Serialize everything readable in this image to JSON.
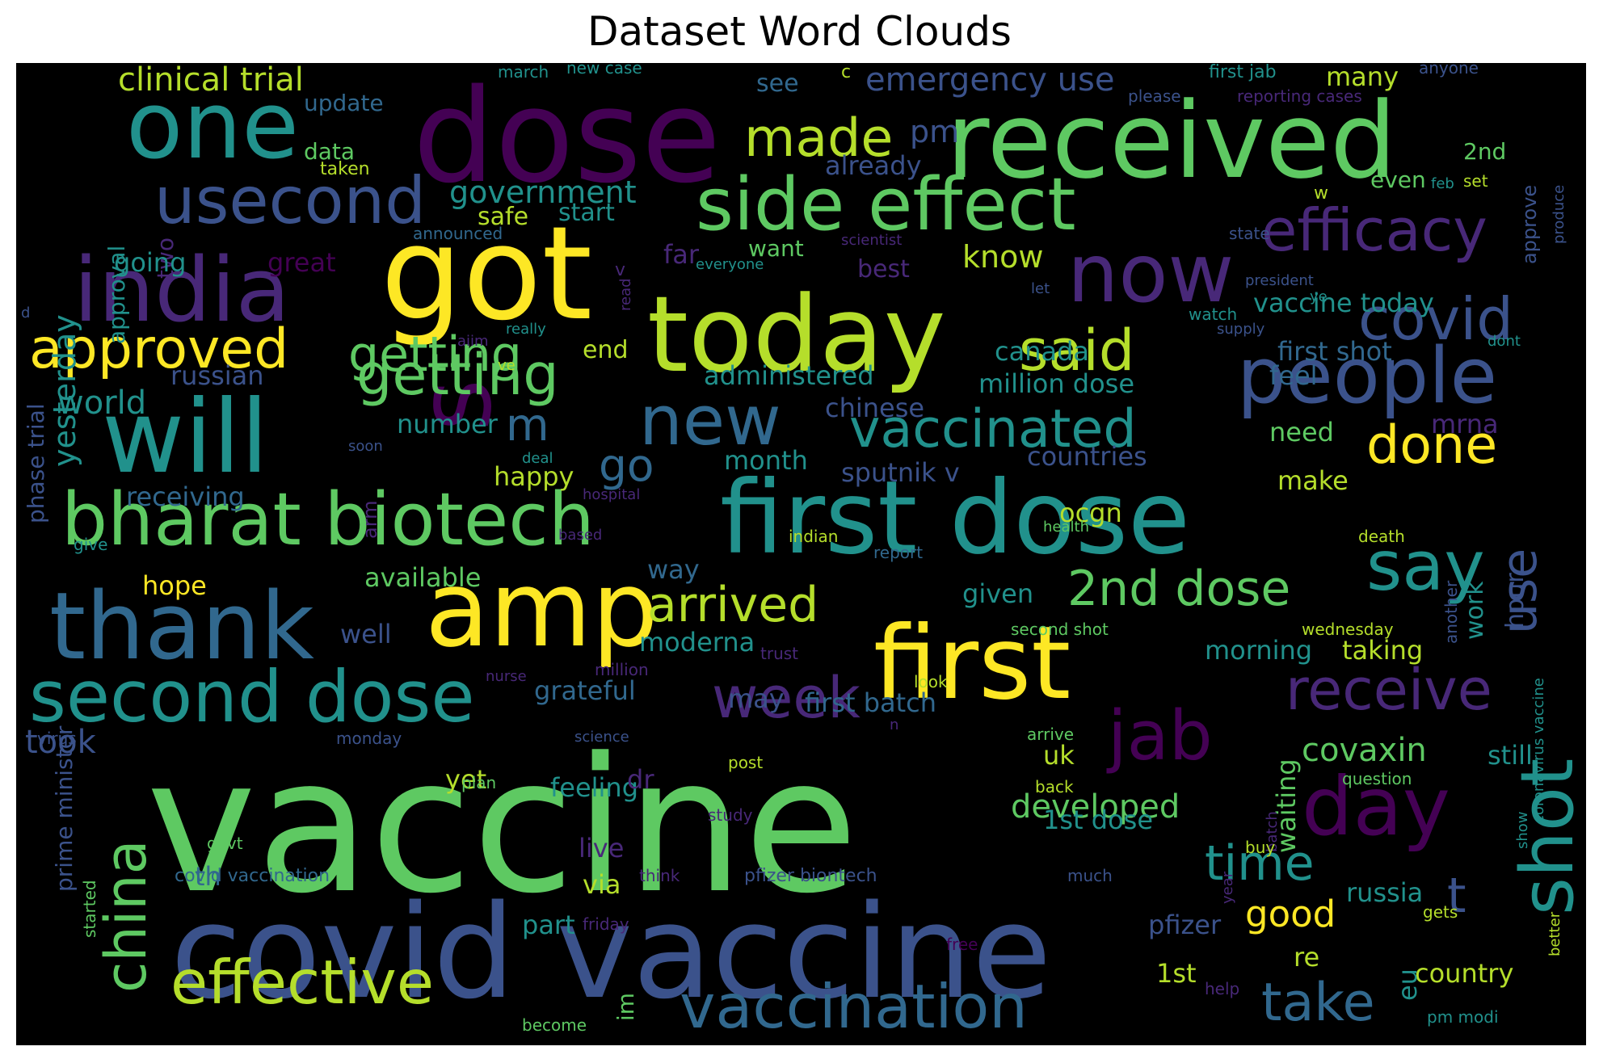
{
  "title": "Dataset Word Clouds",
  "palette": {
    "yellow": "#fde725",
    "lime": "#b5de2b",
    "green": "#5ec962",
    "teal": "#21918c",
    "blue": "#31688e",
    "indigo": "#3b528b",
    "purple": "#440154",
    "violet": "#482878"
  },
  "words": [
    {
      "text": "vaccine",
      "color": "green"
    },
    {
      "text": "covid vaccine",
      "color": "indigo"
    },
    {
      "text": "dose",
      "color": "purple"
    },
    {
      "text": "got",
      "color": "yellow"
    },
    {
      "text": "today",
      "color": "lime"
    },
    {
      "text": "received",
      "color": "green"
    },
    {
      "text": "first dose",
      "color": "teal"
    },
    {
      "text": "first",
      "color": "yellow"
    },
    {
      "text": "amp",
      "color": "yellow"
    },
    {
      "text": "will",
      "color": "teal"
    },
    {
      "text": "india",
      "color": "violet"
    },
    {
      "text": "one",
      "color": "teal"
    },
    {
      "text": "thank",
      "color": "blue"
    },
    {
      "text": "bharat biotech",
      "color": "green"
    },
    {
      "text": "second dose",
      "color": "teal"
    },
    {
      "text": "people",
      "color": "indigo"
    },
    {
      "text": "now",
      "color": "violet"
    },
    {
      "text": "side effect",
      "color": "green"
    },
    {
      "text": "day",
      "color": "purple"
    },
    {
      "text": "s",
      "color": "purple"
    },
    {
      "text": "shot",
      "color": "teal"
    },
    {
      "text": "vaccination",
      "color": "blue"
    },
    {
      "text": "effective",
      "color": "lime"
    },
    {
      "text": "china",
      "color": "green"
    },
    {
      "text": "usecond",
      "color": "indigo"
    },
    {
      "text": "approved",
      "color": "yellow"
    },
    {
      "text": "getting",
      "color": "green"
    },
    {
      "text": "new",
      "color": "blue"
    },
    {
      "text": "vaccinated",
      "color": "teal"
    },
    {
      "text": "efficacy",
      "color": "violet"
    },
    {
      "text": "covid",
      "color": "indigo"
    },
    {
      "text": "said",
      "color": "lime"
    },
    {
      "text": "made",
      "color": "lime"
    },
    {
      "text": "done",
      "color": "yellow"
    },
    {
      "text": "say",
      "color": "teal"
    },
    {
      "text": "2nd dose",
      "color": "green"
    },
    {
      "text": "arrived",
      "color": "lime"
    },
    {
      "text": "receive",
      "color": "violet"
    },
    {
      "text": "jab",
      "color": "purple"
    },
    {
      "text": "week",
      "color": "violet"
    },
    {
      "text": "time",
      "color": "teal"
    },
    {
      "text": "take",
      "color": "blue"
    },
    {
      "text": "t",
      "color": "indigo"
    },
    {
      "text": "use",
      "color": "indigo"
    },
    {
      "text": "go",
      "color": "blue"
    },
    {
      "text": "m",
      "color": "blue"
    },
    {
      "text": "covaxin",
      "color": "green"
    },
    {
      "text": "developed",
      "color": "green"
    },
    {
      "text": "good",
      "color": "yellow"
    },
    {
      "text": "clinical trial",
      "color": "lime"
    },
    {
      "text": "emergency use",
      "color": "indigo"
    },
    {
      "text": "government",
      "color": "teal"
    },
    {
      "text": "pm",
      "color": "indigo"
    },
    {
      "text": "know",
      "color": "lime"
    },
    {
      "text": "getting",
      "color": "green"
    },
    {
      "text": "world",
      "color": "teal"
    },
    {
      "text": "russian",
      "color": "indigo"
    },
    {
      "text": "administered",
      "color": "teal"
    },
    {
      "text": "million dose",
      "color": "teal"
    },
    {
      "text": "chinese",
      "color": "indigo"
    },
    {
      "text": "sputnik v",
      "color": "indigo"
    },
    {
      "text": "countries",
      "color": "indigo"
    },
    {
      "text": "number",
      "color": "teal"
    },
    {
      "text": "month",
      "color": "teal"
    },
    {
      "text": "happy",
      "color": "lime"
    },
    {
      "text": "receiving",
      "color": "blue"
    },
    {
      "text": "available",
      "color": "green"
    },
    {
      "text": "hope",
      "color": "yellow"
    },
    {
      "text": "way",
      "color": "blue"
    },
    {
      "text": "well",
      "color": "indigo"
    },
    {
      "text": "moderna",
      "color": "teal"
    },
    {
      "text": "grateful",
      "color": "blue"
    },
    {
      "text": "may",
      "color": "indigo"
    },
    {
      "text": "first batch",
      "color": "blue"
    },
    {
      "text": "took",
      "color": "indigo"
    },
    {
      "text": "yet",
      "color": "lime"
    },
    {
      "text": "feeling",
      "color": "teal"
    },
    {
      "text": "via",
      "color": "lime"
    },
    {
      "text": "part",
      "color": "teal"
    },
    {
      "text": "live",
      "color": "violet"
    },
    {
      "text": "th",
      "color": "blue"
    },
    {
      "text": "1st dose",
      "color": "teal"
    },
    {
      "text": "pfizer",
      "color": "indigo"
    },
    {
      "text": "1st",
      "color": "lime"
    },
    {
      "text": "country",
      "color": "lime"
    },
    {
      "text": "russia",
      "color": "teal"
    },
    {
      "text": "re",
      "color": "lime"
    },
    {
      "text": "eu",
      "color": "teal"
    },
    {
      "text": "uk",
      "color": "lime"
    },
    {
      "text": "waiting",
      "color": "green"
    },
    {
      "text": "still",
      "color": "teal"
    },
    {
      "text": "taking",
      "color": "lime"
    },
    {
      "text": "morning",
      "color": "teal"
    },
    {
      "text": "ocgn",
      "color": "lime"
    },
    {
      "text": "given",
      "color": "teal"
    },
    {
      "text": "feel",
      "color": "blue"
    },
    {
      "text": "make",
      "color": "lime"
    },
    {
      "text": "need",
      "color": "green"
    },
    {
      "text": "canada",
      "color": "teal"
    },
    {
      "text": "first shot",
      "color": "blue"
    },
    {
      "text": "vaccine today",
      "color": "teal"
    },
    {
      "text": "mrna",
      "color": "violet"
    },
    {
      "text": "work",
      "color": "teal"
    },
    {
      "text": "hour",
      "color": "indigo"
    },
    {
      "text": "yesterday",
      "color": "teal"
    },
    {
      "text": "approval",
      "color": "teal"
    },
    {
      "text": "two",
      "color": "violet"
    },
    {
      "text": "going",
      "color": "teal"
    },
    {
      "text": "great",
      "color": "purple"
    },
    {
      "text": "data",
      "color": "green"
    },
    {
      "text": "update",
      "color": "blue"
    },
    {
      "text": "taken",
      "color": "lime"
    },
    {
      "text": "safe",
      "color": "lime"
    },
    {
      "text": "start",
      "color": "teal"
    },
    {
      "text": "announced",
      "color": "blue"
    },
    {
      "text": "far",
      "color": "violet"
    },
    {
      "text": "best",
      "color": "violet"
    },
    {
      "text": "want",
      "color": "green"
    },
    {
      "text": "already",
      "color": "indigo"
    },
    {
      "text": "see",
      "color": "blue"
    },
    {
      "text": "end",
      "color": "lime"
    },
    {
      "text": "phase trial",
      "color": "indigo"
    },
    {
      "text": "prime minister",
      "color": "indigo"
    },
    {
      "text": "arm",
      "color": "violet"
    },
    {
      "text": "2nd",
      "color": "green"
    },
    {
      "text": "even",
      "color": "green"
    },
    {
      "text": "many",
      "color": "lime"
    },
    {
      "text": "first jab",
      "color": "teal"
    },
    {
      "text": "approve",
      "color": "indigo"
    },
    {
      "text": "march",
      "color": "teal"
    },
    {
      "text": "new case",
      "color": "teal"
    },
    {
      "text": "please",
      "color": "indigo"
    },
    {
      "text": "reporting cases",
      "color": "violet"
    },
    {
      "text": "anyone",
      "color": "indigo"
    },
    {
      "text": "produce",
      "color": "indigo"
    },
    {
      "text": "set",
      "color": "lime"
    },
    {
      "text": "feb",
      "color": "teal"
    },
    {
      "text": "w",
      "color": "lime"
    },
    {
      "text": "state",
      "color": "indigo"
    },
    {
      "text": "scientist",
      "color": "violet"
    },
    {
      "text": "everyone",
      "color": "teal"
    },
    {
      "text": "president",
      "color": "indigo"
    },
    {
      "text": "let",
      "color": "indigo"
    },
    {
      "text": "ye",
      "color": "teal"
    },
    {
      "text": "watch",
      "color": "teal"
    },
    {
      "text": "supply",
      "color": "indigo"
    },
    {
      "text": "dont",
      "color": "teal"
    },
    {
      "text": "read",
      "color": "violet"
    },
    {
      "text": "really",
      "color": "teal"
    },
    {
      "text": "aiim",
      "color": "violet"
    },
    {
      "text": "ve",
      "color": "lime"
    },
    {
      "text": "soon",
      "color": "indigo"
    },
    {
      "text": "deal",
      "color": "teal"
    },
    {
      "text": "hospital",
      "color": "violet"
    },
    {
      "text": "based",
      "color": "violet"
    },
    {
      "text": "indian",
      "color": "lime"
    },
    {
      "text": "give",
      "color": "teal"
    },
    {
      "text": "report",
      "color": "blue"
    },
    {
      "text": "health",
      "color": "green"
    },
    {
      "text": "death",
      "color": "lime"
    },
    {
      "text": "another",
      "color": "indigo"
    },
    {
      "text": "coronavirus vaccine",
      "color": "teal"
    },
    {
      "text": "wednesday",
      "color": "lime"
    },
    {
      "text": "second shot",
      "color": "green"
    },
    {
      "text": "trust",
      "color": "violet"
    },
    {
      "text": "million",
      "color": "violet"
    },
    {
      "text": "nurse",
      "color": "violet"
    },
    {
      "text": "look",
      "color": "lime"
    },
    {
      "text": "arrive",
      "color": "green"
    },
    {
      "text": "science",
      "color": "indigo"
    },
    {
      "text": "virus",
      "color": "indigo"
    },
    {
      "text": "monday",
      "color": "indigo"
    },
    {
      "text": "plan",
      "color": "green"
    },
    {
      "text": "post",
      "color": "lime"
    },
    {
      "text": "back",
      "color": "lime"
    },
    {
      "text": "batch",
      "color": "violet"
    },
    {
      "text": "question",
      "color": "green"
    },
    {
      "text": "show",
      "color": "teal"
    },
    {
      "text": "dr",
      "color": "violet"
    },
    {
      "text": "study",
      "color": "violet"
    },
    {
      "text": "buy",
      "color": "lime"
    },
    {
      "text": "year",
      "color": "violet"
    },
    {
      "text": "govt",
      "color": "green"
    },
    {
      "text": "started",
      "color": "green"
    },
    {
      "text": "covid vaccination",
      "color": "blue"
    },
    {
      "text": "think",
      "color": "violet"
    },
    {
      "text": "pfizer biontech",
      "color": "indigo"
    },
    {
      "text": "much",
      "color": "indigo"
    },
    {
      "text": "friday",
      "color": "violet"
    },
    {
      "text": "free",
      "color": "purple"
    },
    {
      "text": "gets",
      "color": "lime"
    },
    {
      "text": "better",
      "color": "lime"
    },
    {
      "text": "help",
      "color": "violet"
    },
    {
      "text": "pm modi",
      "color": "teal"
    },
    {
      "text": "im",
      "color": "green"
    },
    {
      "text": "become",
      "color": "green"
    },
    {
      "text": "c",
      "color": "lime"
    },
    {
      "text": "d",
      "color": "indigo"
    },
    {
      "text": "v",
      "color": "violet"
    },
    {
      "text": "n",
      "color": "violet"
    }
  ]
}
